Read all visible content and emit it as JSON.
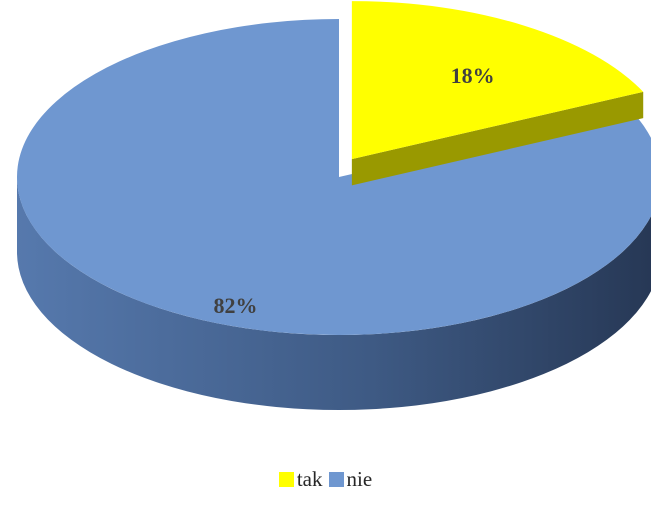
{
  "chart_data": {
    "type": "pie",
    "style": "3d",
    "categories": [
      "tak",
      "nie"
    ],
    "values": [
      18,
      82
    ],
    "data_labels": [
      "18%",
      "82%"
    ],
    "exploded": "tak",
    "colors": {
      "tak": "#ffff00",
      "nie": "#6f97d0"
    },
    "legend": {
      "placement": "bottom",
      "entries": [
        "tak",
        "nie"
      ]
    }
  }
}
